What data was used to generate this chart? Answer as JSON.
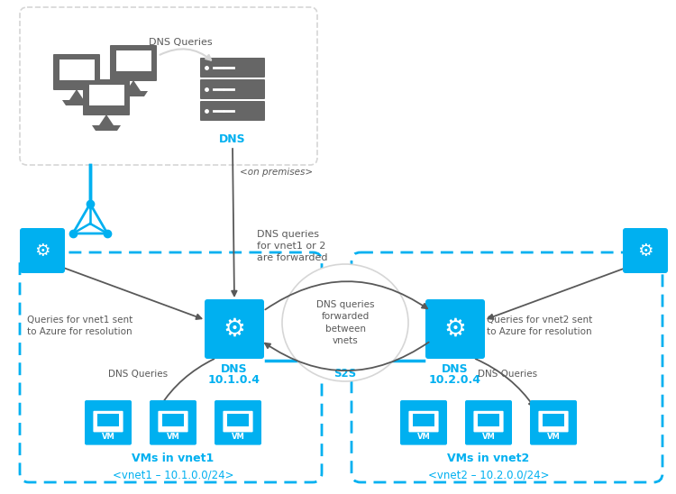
{
  "bg_color": "#ffffff",
  "cyan": "#00b0f0",
  "cyan_dark": "#0078d4",
  "cyan_light": "#b3e8fb",
  "gray": "#595959",
  "gray_light": "#d6d6d6",
  "gray_icon": "#666666",
  "text_on_premises": "<on premises>",
  "text_dns_queries_top": "DNS Queries",
  "text_dns_forwarded": "DNS queries\nfor vnet1 or 2\nare forwarded",
  "text_dns_fwd_between": "DNS queries\nforwarded\nbetween\nvnets",
  "text_s2s": "S2S",
  "text_dns1": "DNS\n10.1.0.4",
  "text_dns2": "DNS\n10.2.0.4",
  "text_vms_vnet1": "VMs in vnet1",
  "text_vms_vnet2": "VMs in vnet2",
  "text_vnet1_label": "<vnet1 – 10.1.0.0/24>",
  "text_vnet2_label": "<vnet2 – 10.2.0.0/24>",
  "text_q_vnet1": "Queries for vnet1 sent\nto Azure for resolution",
  "text_q_vnet2": "Queries for vnet2 sent\nto Azure for resolution",
  "text_dns_queries_left": "DNS Queries",
  "text_dns_queries_right": "DNS Queries"
}
